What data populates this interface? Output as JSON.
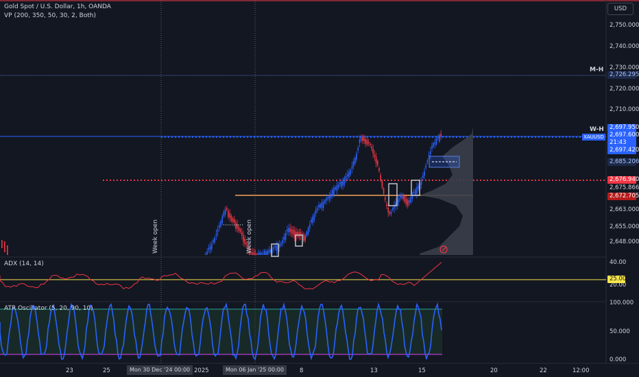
{
  "header": {
    "title": "Gold Spot / U.S. Dollar, 1h, OANDA",
    "indicator": "VP (200, 350, 50, 30, 2, Both)"
  },
  "currency_button": "USD",
  "price_axis": [
    "2,750.000",
    "2,740.000",
    "2,730.000",
    "2,720.000",
    "2,710.000",
    "2,663.000",
    "2,655.000",
    "2,648.000"
  ],
  "price_tags": [
    {
      "label": "2,726.295",
      "bg": "#1e2a4a",
      "fg": "#a7c5ff"
    },
    {
      "label": "2,697.950",
      "bg": "#2962ff",
      "fg": "#ffffff"
    },
    {
      "label": "2,697.600",
      "bg": "#2962ff",
      "fg": "#ffffff"
    },
    {
      "label": "21:43",
      "bg": "#2962ff",
      "fg": "#ffffff"
    },
    {
      "label": "2,697.420",
      "bg": "#2962ff",
      "fg": "#ffffff"
    },
    {
      "label": "2,685.206",
      "bg": "#1e2a4a",
      "fg": "#a7c5ff"
    },
    {
      "label": "2,676.940",
      "bg": "#f23645",
      "fg": "#ffffff"
    },
    {
      "label": "2,675.866",
      "bg": "#131722",
      "fg": "#d1d4dc"
    },
    {
      "label": "2,672.705",
      "bg": "#b71c1c",
      "fg": "#ffffff"
    }
  ],
  "level_labels": {
    "monthly_high": "M-H",
    "weekly_high": "W-H"
  },
  "symbol_tag": "XAUUSD",
  "session_labels": {
    "week_open_1": "Week open",
    "week_open_2": "Week open"
  },
  "adx": {
    "label": "ADX (14, 14)",
    "axis": [
      "40.00",
      "20.00"
    ],
    "threshold_tag": "25.00"
  },
  "atr": {
    "label": "ATR Oscillator (5, 20, 90, 10)",
    "axis": [
      "100.000",
      "50.000",
      "0.000"
    ]
  },
  "time_axis": {
    "labels": [
      "23",
      "25",
      "2025",
      "8",
      "13",
      "15",
      "20",
      "22",
      "12:00"
    ],
    "boxes": [
      "Mon 30 Dec '24   00:00",
      "Mon 06 Jan '25   00:00"
    ]
  },
  "colors": {
    "up": "#2962ff",
    "down": "#f23645",
    "orange": "#f7a35c",
    "adx": "#f23645",
    "atr": "#2962ff",
    "threshold": "#f7e64a"
  }
}
